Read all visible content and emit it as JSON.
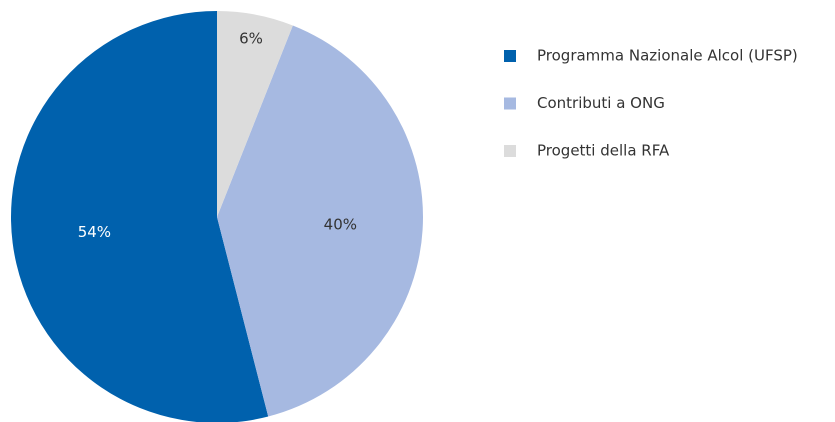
{
  "chart_data": {
    "type": "pie",
    "categories": [
      "Programma Nazionale Alcol (UFSP)",
      "Contributi a ONG",
      "Progetti della RFA"
    ],
    "values": [
      54,
      40,
      6
    ],
    "value_labels": [
      "54%",
      "40%",
      "6%"
    ],
    "colors": [
      "#0061ad",
      "#a6b9e1",
      "#dcdcdc"
    ],
    "legend": "right"
  }
}
